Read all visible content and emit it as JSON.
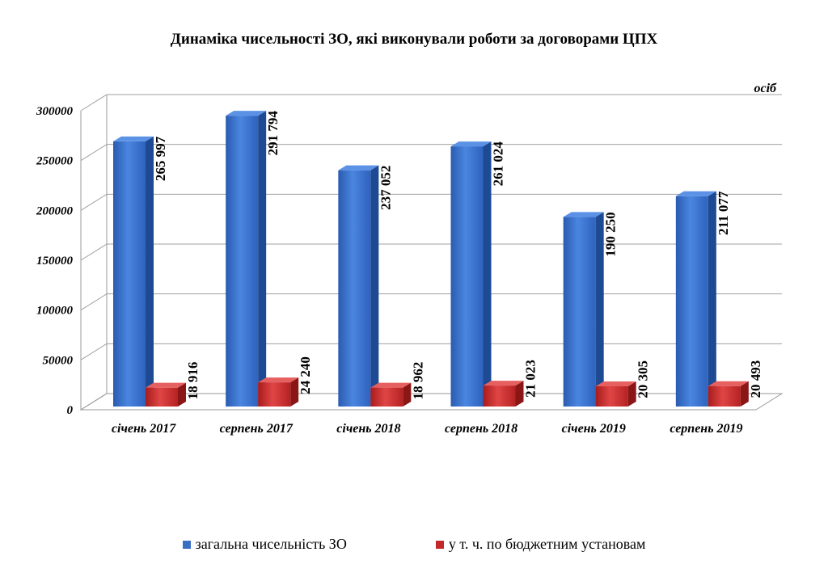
{
  "chart_data": {
    "type": "bar",
    "title": "Динаміка чисельності ЗО, які виконували роботи за договорами  ЦПХ",
    "unit_label": "осіб",
    "categories": [
      "січень 2017",
      "серпень 2017",
      "січень 2018",
      "серпень 2018",
      "січень 2019",
      "серпень 2019"
    ],
    "series": [
      {
        "name": "загальна чисельність ЗО",
        "color": "#3a6fc4",
        "values": [
          265997,
          291794,
          237052,
          261024,
          190250,
          211077
        ],
        "labels": [
          "265 997",
          "291 794",
          "237 052",
          "261 024",
          "190 250",
          "211 077"
        ]
      },
      {
        "name": "у т. ч. по  бюджетним установам",
        "color": "#c42828",
        "values": [
          18916,
          24240,
          18962,
          21023,
          20305,
          20493
        ],
        "labels": [
          "18 916",
          "24 240",
          "18 962",
          "21 023",
          "20 305",
          "20 493"
        ]
      }
    ],
    "yticks": [
      "0",
      "50000",
      "100000",
      "150000",
      "200000",
      "250000",
      "300000"
    ],
    "ylim": [
      0,
      300000
    ],
    "grid": true,
    "legend_position": "bottom"
  }
}
